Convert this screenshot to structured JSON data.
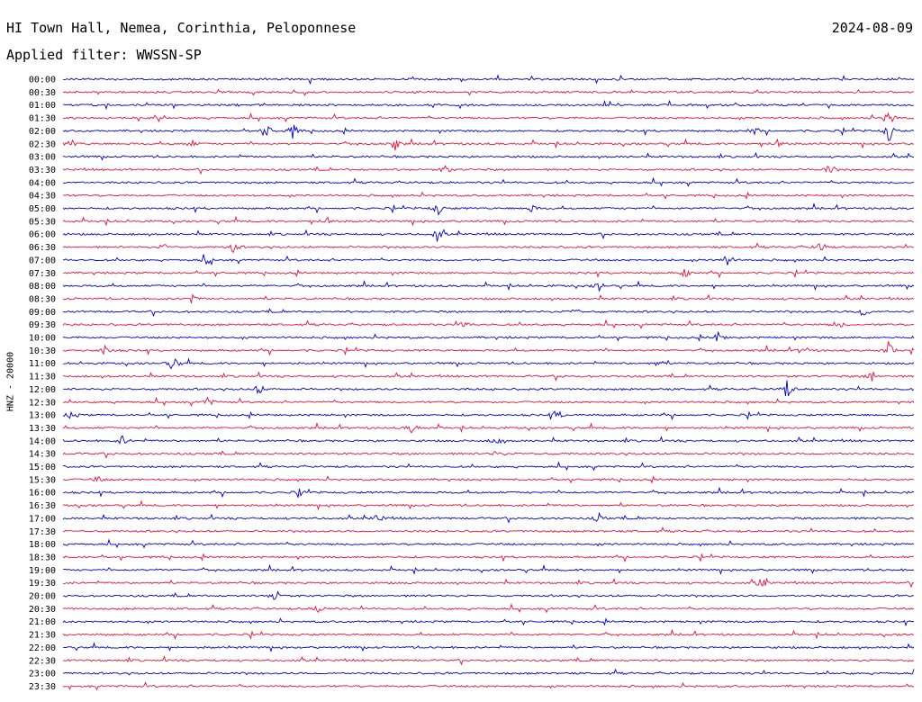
{
  "header": {
    "station": "HI Town Hall, Nemea, Corinthia, Peloponnese",
    "date": "2024-08-09",
    "filter": "Applied filter: WWSSN-SP"
  },
  "chart_data": {
    "type": "line",
    "title": "HI Town Hall, Nemea, Corinthia, Peloponnese",
    "ylabel": "HNZ - 20000",
    "row_labels": [
      "00:00",
      "00:30",
      "01:00",
      "01:30",
      "02:00",
      "02:30",
      "03:00",
      "03:30",
      "04:00",
      "04:30",
      "05:00",
      "05:30",
      "06:00",
      "06:30",
      "07:00",
      "07:30",
      "08:00",
      "08:30",
      "09:00",
      "09:30",
      "10:00",
      "10:30",
      "11:00",
      "11:30",
      "12:00",
      "12:30",
      "13:00",
      "13:30",
      "14:00",
      "14:30",
      "15:00",
      "15:30",
      "16:00",
      "16:30",
      "17:00",
      "17:30",
      "18:00",
      "18:30",
      "19:00",
      "19:30",
      "20:00",
      "20:30",
      "21:00",
      "21:30",
      "22:00",
      "22:30",
      "23:00",
      "23:30"
    ],
    "colors": [
      "#0000cc",
      "#e8103c"
    ],
    "events": [
      {
        "row": 3,
        "t": 0.97,
        "amp": 12
      },
      {
        "row": 4,
        "t": 0.24,
        "amp": 8
      },
      {
        "row": 4,
        "t": 0.27,
        "amp": 9
      },
      {
        "row": 4,
        "t": 0.97,
        "amp": 14
      },
      {
        "row": 4,
        "t": 0.81,
        "amp": 5
      },
      {
        "row": 5,
        "t": 0.01,
        "amp": 5
      },
      {
        "row": 5,
        "t": 0.15,
        "amp": 5
      },
      {
        "row": 5,
        "t": 0.39,
        "amp": 8
      },
      {
        "row": 5,
        "t": 0.84,
        "amp": 7
      },
      {
        "row": 7,
        "t": 0.45,
        "amp": 5
      },
      {
        "row": 7,
        "t": 0.9,
        "amp": 7
      },
      {
        "row": 10,
        "t": 0.44,
        "amp": 8
      },
      {
        "row": 10,
        "t": 0.55,
        "amp": 5
      },
      {
        "row": 11,
        "t": 0.31,
        "amp": 6
      },
      {
        "row": 12,
        "t": 0.44,
        "amp": 9
      },
      {
        "row": 13,
        "t": 0.12,
        "amp": 5
      },
      {
        "row": 13,
        "t": 0.2,
        "amp": 6
      },
      {
        "row": 13,
        "t": 0.89,
        "amp": 8
      },
      {
        "row": 14,
        "t": 0.17,
        "amp": 7
      },
      {
        "row": 14,
        "t": 0.78,
        "amp": 8
      },
      {
        "row": 15,
        "t": 0.73,
        "amp": 7
      },
      {
        "row": 16,
        "t": 0.63,
        "amp": 6
      },
      {
        "row": 17,
        "t": 0.15,
        "amp": 7
      },
      {
        "row": 18,
        "t": 0.6,
        "amp": 6
      },
      {
        "row": 18,
        "t": 0.94,
        "amp": 7
      },
      {
        "row": 19,
        "t": 0.47,
        "amp": 5
      },
      {
        "row": 19,
        "t": 0.91,
        "amp": 6
      },
      {
        "row": 20,
        "t": 0.77,
        "amp": 8
      },
      {
        "row": 21,
        "t": 0.05,
        "amp": 7
      },
      {
        "row": 21,
        "t": 0.87,
        "amp": 6
      },
      {
        "row": 21,
        "t": 0.97,
        "amp": 9
      },
      {
        "row": 22,
        "t": 0.13,
        "amp": 10
      },
      {
        "row": 22,
        "t": 0.7,
        "amp": 5
      },
      {
        "row": 23,
        "t": 0.95,
        "amp": 7
      },
      {
        "row": 24,
        "t": 0.23,
        "amp": 7
      },
      {
        "row": 24,
        "t": 0.85,
        "amp": 12
      },
      {
        "row": 25,
        "t": 0.17,
        "amp": 6
      },
      {
        "row": 26,
        "t": 0.01,
        "amp": 6
      },
      {
        "row": 26,
        "t": 0.58,
        "amp": 7
      },
      {
        "row": 27,
        "t": 0.41,
        "amp": 7
      },
      {
        "row": 28,
        "t": 0.07,
        "amp": 6
      },
      {
        "row": 28,
        "t": 0.51,
        "amp": 6
      },
      {
        "row": 29,
        "t": 0.51,
        "amp": 5
      },
      {
        "row": 31,
        "t": 0.04,
        "amp": 4
      },
      {
        "row": 32,
        "t": 0.28,
        "amp": 4
      },
      {
        "row": 34,
        "t": 0.37,
        "amp": 6
      },
      {
        "row": 34,
        "t": 0.63,
        "amp": 6
      },
      {
        "row": 39,
        "t": 0.82,
        "amp": 7
      },
      {
        "row": 40,
        "t": 0.25,
        "amp": 8
      },
      {
        "row": 41,
        "t": 0.3,
        "amp": 6
      }
    ]
  }
}
